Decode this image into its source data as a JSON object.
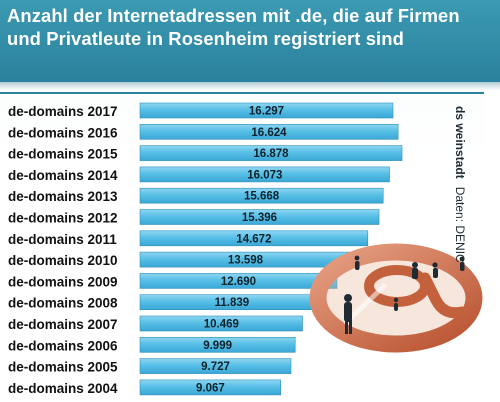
{
  "header": {
    "title": "Anzahl der Internetadressen mit .de, die auf Firmen und Privatleute in Rosenheim registriert sind"
  },
  "sidebar": {
    "publisher": "ds weinstadt",
    "source": "Daten: DENIC"
  },
  "colors": {
    "header": "#2f8ba6",
    "bar": "#58bfe6",
    "bar_edge": "#2f8fb8"
  },
  "decoration": {
    "icon": "at-sign-icon"
  },
  "chart_data": {
    "type": "bar",
    "orientation": "horizontal",
    "categories": [
      "de-domains 2017",
      "de-domains 2016",
      "de-domains 2015",
      "de-domains 2014",
      "de-domains 2013",
      "de-domains 2012",
      "de-domains 2011",
      "de-domains 2010",
      "de-domains 2009",
      "de-domains 2008",
      "de-domains 2007",
      "de-domains 2006",
      "de-domains 2005",
      "de-domains 2004"
    ],
    "values": [
      16297,
      16624,
      16878,
      16073,
      15668,
      15396,
      14672,
      13598,
      12690,
      11839,
      10469,
      9999,
      9727,
      9067
    ],
    "value_labels": [
      "16.297",
      "16.624",
      "16.878",
      "16.073",
      "15.668",
      "15.396",
      "14.672",
      "13.598",
      "12.690",
      "11.839",
      "10.469",
      "9.999",
      "9.727",
      "9.067"
    ],
    "title": "Anzahl der Internetadressen mit .de, die auf Firmen und Privatleute in Rosenheim registriert sind",
    "grid": false,
    "legend": "none",
    "xlim": [
      0,
      16878
    ]
  }
}
